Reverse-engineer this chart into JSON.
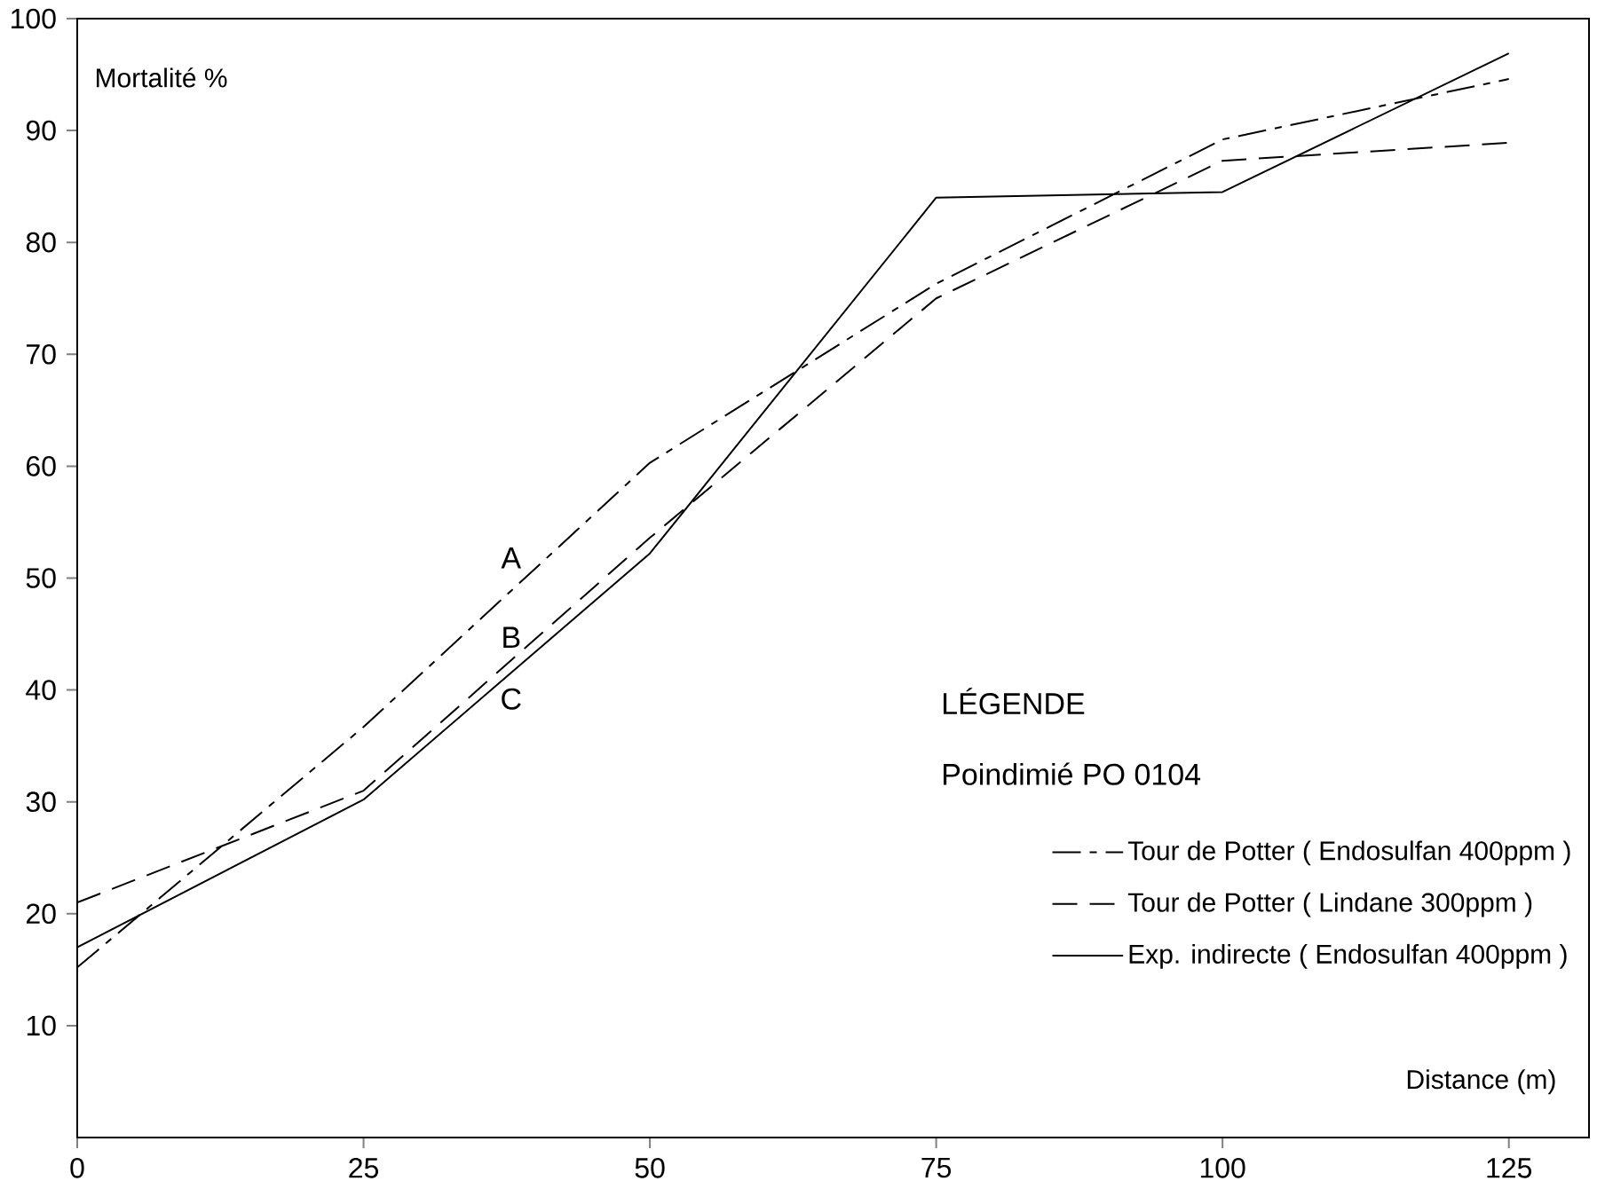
{
  "chart_data": {
    "type": "line",
    "xlabel": "Distance (m)",
    "ylabel": "Mortalité %",
    "legend_title": "LÉGENDE",
    "x": [
      0,
      25,
      50,
      75,
      100,
      125
    ],
    "series": [
      {
        "name": "Tour de Potter ( Endosulfan 400ppm )",
        "color": "#000000",
        "line_style": "dashdot",
        "values": [
          15.2,
          36.7,
          60.3,
          76.3,
          89.2,
          94.6
        ]
      },
      {
        "name": "Tour de Potter ( Lindane 300ppm )",
        "color": "#000000",
        "line_style": "dashed",
        "values": [
          21,
          31,
          53.6,
          75,
          87.3,
          88.9
        ]
      },
      {
        "name": "Exp. indirecte ( Endosulfan 400ppm )",
        "color": "#000000",
        "line_style": "solid",
        "values": [
          17,
          30.2,
          52.2,
          84,
          84.5,
          96.9
        ]
      }
    ],
    "xlim": [
      0,
      132
    ],
    "ylim": [
      0,
      100
    ],
    "xticks": [
      0,
      25,
      50,
      75,
      100,
      125
    ],
    "yticks": [
      10,
      20,
      30,
      40,
      50,
      60,
      70,
      80,
      90,
      100
    ],
    "grid": false,
    "legend": "bottom right",
    "marker": "none",
    "annotations": [
      "A",
      "B",
      "C",
      "Poindimié PO 0104"
    ]
  }
}
